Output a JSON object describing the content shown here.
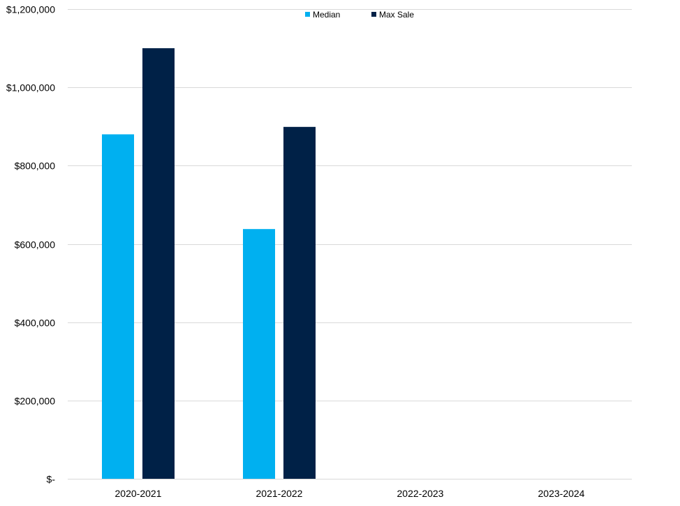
{
  "chart_data": {
    "type": "bar",
    "title": "",
    "xlabel": "",
    "ylabel": "",
    "categories": [
      "2020-2021",
      "2021-2022",
      "2022-2023",
      "2023-2024"
    ],
    "series": [
      {
        "name": "Median",
        "color": "#00b0f0",
        "values": [
          880000,
          638000,
          null,
          null
        ]
      },
      {
        "name": "Max Sale",
        "color": "#002147",
        "values": [
          1100000,
          899000,
          null,
          null
        ]
      }
    ],
    "ylim": [
      0,
      1200000
    ],
    "yticks": [
      0,
      200000,
      400000,
      600000,
      800000,
      1000000,
      1200000
    ],
    "ytick_labels": [
      "$-",
      "$200,000",
      "$400,000",
      "$600,000",
      "$800,000",
      "$1,000,000",
      "$1,200,000"
    ],
    "grid": true,
    "gridline_color": "#d9d9d9",
    "legend_position": "top-center"
  }
}
